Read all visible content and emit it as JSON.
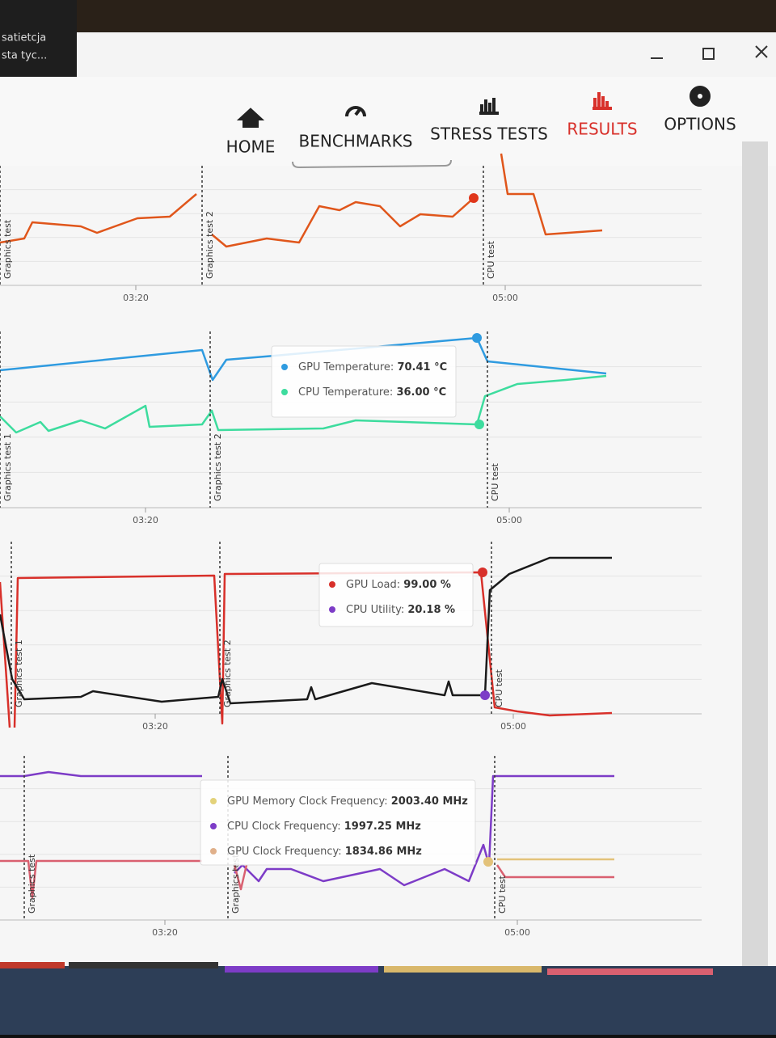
{
  "window": {
    "notification": [
      "satietcja",
      "sta tyc..."
    ]
  },
  "nav": [
    {
      "label": "HOME"
    },
    {
      "label": "BENCHMARKS"
    },
    {
      "label": "STRESS TESTS"
    },
    {
      "label": "RESULTS"
    },
    {
      "label": "OPTIONS"
    }
  ],
  "panels": [
    {
      "markers": [
        "Graphics test",
        "Graphics test 2",
        "CPU test"
      ],
      "times": [
        "03:20",
        "05:00"
      ],
      "tooltip": []
    },
    {
      "markers": [
        "Graphics test 1",
        "Graphics test 2",
        "CPU test"
      ],
      "times": [
        "03:20",
        "05:00"
      ],
      "tooltip": [
        {
          "label": "GPU Temperature:",
          "value": "70.41 °C"
        },
        {
          "label": "CPU Temperature:",
          "value": "36.00 °C"
        }
      ]
    },
    {
      "markers": [
        "Graphics test 1",
        "Graphics test 2",
        "CPU test"
      ],
      "times": [
        "03:20",
        "05:00"
      ],
      "tooltip": [
        {
          "label": "GPU Load:",
          "value": "99.00 %"
        },
        {
          "label": "CPU Utility:",
          "value": "20.18 %"
        }
      ]
    },
    {
      "markers": [
        "Graphics test",
        "Graphics test",
        "CPU test"
      ],
      "times": [
        "03:20",
        "05:00"
      ],
      "tooltip": [
        {
          "label": "GPU Memory Clock Frequency:",
          "value": "2003.40 MHz"
        },
        {
          "label": "CPU Clock Frequency:",
          "value": "1997.25 MHz"
        },
        {
          "label": "GPU Clock Frequency:",
          "value": "1834.86 MHz"
        }
      ]
    }
  ]
}
